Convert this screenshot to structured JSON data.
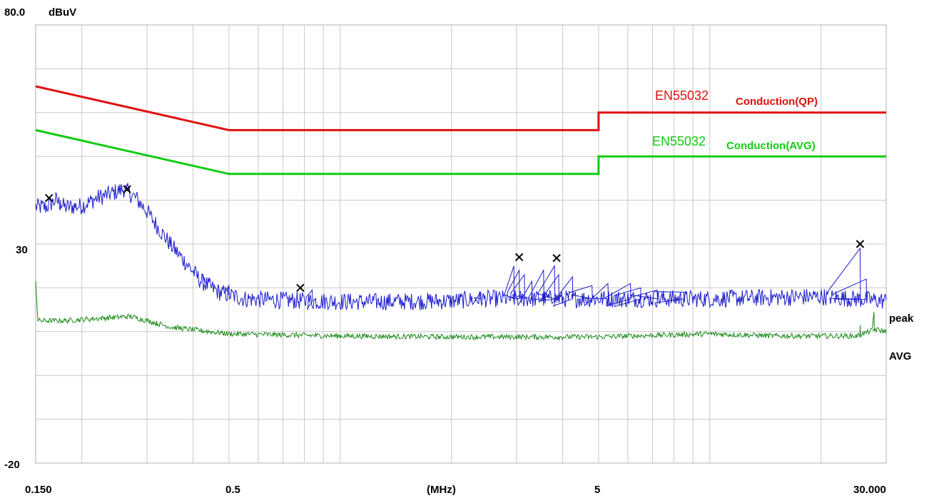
{
  "chart_data": {
    "type": "line",
    "title": "",
    "unit_label": "dBuV",
    "xlabel": "(MHz)",
    "x_scale": "log",
    "xlim": [
      0.15,
      30
    ],
    "ylim": [
      -20,
      80
    ],
    "y_tick_labels": [
      "80.0",
      "30",
      "-20"
    ],
    "y_ticks": [
      80,
      30,
      -20
    ],
    "x_tick_labels": [
      "0.150",
      "0.5",
      "5",
      "30.000"
    ],
    "x_ticks": [
      0.15,
      0.5,
      5,
      30
    ],
    "grid": true,
    "y_grid": [
      80,
      70,
      60,
      50,
      40,
      30,
      20,
      10,
      0,
      -10,
      -20
    ],
    "x_grid": [
      0.15,
      0.2,
      0.3,
      0.4,
      0.5,
      0.6,
      0.7,
      0.8,
      0.9,
      1,
      2,
      3,
      4,
      5,
      6,
      7,
      8,
      9,
      10,
      20,
      30
    ],
    "colors": {
      "qp_limit": "#e01010",
      "avg_limit": "#10cc10",
      "peak": "#1a1acc",
      "avg": "#1a8a1a",
      "grid": "#c8c8c8",
      "marker": "#000000"
    },
    "limit_lines": [
      {
        "standard": "EN55032",
        "name": "Conduction(QP)",
        "color": "#e01010",
        "points": [
          [
            0.15,
            66
          ],
          [
            0.5,
            56
          ],
          [
            5,
            56
          ],
          [
            5,
            60
          ],
          [
            30,
            60
          ]
        ]
      },
      {
        "standard": "EN55032",
        "name": "Conduction(AVG)",
        "color": "#10cc10",
        "points": [
          [
            0.15,
            56
          ],
          [
            0.5,
            46
          ],
          [
            5,
            46
          ],
          [
            5,
            50
          ],
          [
            30,
            50
          ]
        ]
      }
    ],
    "series": [
      {
        "name": "peak",
        "color": "#1a1acc",
        "points": [
          [
            0.15,
            38.5
          ],
          [
            0.16,
            38.4
          ],
          [
            0.17,
            40.0
          ],
          [
            0.18,
            38.4
          ],
          [
            0.2,
            38.7
          ],
          [
            0.22,
            40.5
          ],
          [
            0.24,
            41.5
          ],
          [
            0.26,
            42.6
          ],
          [
            0.28,
            40.5
          ],
          [
            0.3,
            37.5
          ],
          [
            0.32,
            34.0
          ],
          [
            0.35,
            29.5
          ],
          [
            0.38,
            26.0
          ],
          [
            0.42,
            21.5
          ],
          [
            0.47,
            19.0
          ],
          [
            0.55,
            17.5
          ],
          [
            0.8,
            17.0
          ],
          [
            1.2,
            16.8
          ],
          [
            2.0,
            17.0
          ],
          [
            2.5,
            17.5
          ],
          [
            5,
            17.5
          ],
          [
            10,
            17.5
          ],
          [
            20,
            18.0
          ],
          [
            30,
            17.0
          ]
        ],
        "spikes": [
          [
            0.175,
            40.0
          ],
          [
            0.265,
            42.5
          ],
          [
            0.43,
            22.0
          ],
          [
            0.5,
            20.5
          ],
          [
            0.84,
            19.5
          ],
          [
            2.4,
            19.0
          ],
          [
            2.95,
            25.0
          ],
          [
            3.05,
            24.0
          ],
          [
            3.15,
            23.0
          ],
          [
            3.3,
            21.5
          ],
          [
            3.55,
            24.0
          ],
          [
            3.8,
            25.0
          ],
          [
            3.9,
            23.0
          ],
          [
            4.25,
            22.5
          ],
          [
            4.8,
            20.5
          ],
          [
            5.3,
            21.0
          ],
          [
            6.1,
            21.0
          ],
          [
            6.5,
            20.0
          ],
          [
            7.2,
            19.5
          ],
          [
            8.5,
            19.0
          ],
          [
            25.5,
            29.0
          ],
          [
            26.5,
            22.0
          ]
        ]
      },
      {
        "name": "AVG",
        "color": "#1a8a1a",
        "points": [
          [
            0.15,
            22.0
          ],
          [
            0.152,
            12.5
          ],
          [
            0.18,
            12.5
          ],
          [
            0.22,
            13.0
          ],
          [
            0.27,
            13.5
          ],
          [
            0.3,
            12.5
          ],
          [
            0.35,
            11.0
          ],
          [
            0.5,
            9.5
          ],
          [
            1.0,
            9.0
          ],
          [
            2.0,
            8.8
          ],
          [
            5,
            8.8
          ],
          [
            10,
            9.5
          ],
          [
            15,
            9.0
          ],
          [
            25,
            9.0
          ],
          [
            28,
            10.5
          ],
          [
            30,
            10.0
          ]
        ],
        "spikes": [
          [
            25.5,
            11.5
          ],
          [
            27.8,
            14.5
          ]
        ]
      }
    ],
    "markers": [
      {
        "series": "peak",
        "x": 0.163,
        "y": 40.5
      },
      {
        "series": "peak",
        "x": 0.265,
        "y": 42.5
      },
      {
        "series": "peak",
        "x": 0.78,
        "y": 20.0
      },
      {
        "series": "peak",
        "x": 3.05,
        "y": 27.0
      },
      {
        "series": "peak",
        "x": 3.85,
        "y": 26.8
      },
      {
        "series": "peak",
        "x": 25.5,
        "y": 30.0
      }
    ]
  }
}
